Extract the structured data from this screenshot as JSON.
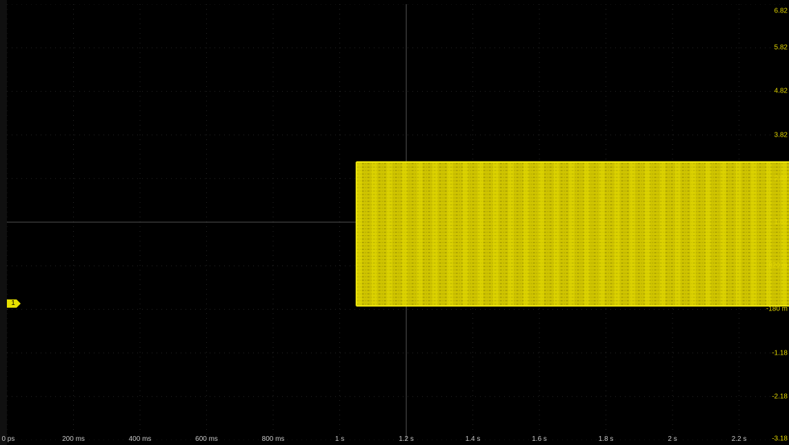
{
  "channel": {
    "number": "1",
    "color": "#e8e000"
  },
  "time_axis": {
    "labels": [
      "0 ps",
      "200 ms",
      "400 ms",
      "600 ms",
      "800 ms",
      "1 s",
      "1.2 s",
      "1.4 s",
      "1.6 s",
      "1.8 s",
      "2 s",
      "2.2 s"
    ],
    "start_s": 0,
    "end_s": 2.35
  },
  "voltage_axis": {
    "labels": [
      "6.82",
      "5.82",
      "4.82",
      "3.82",
      "2.82",
      "1.82",
      "820 m",
      "-180 m",
      "-1.18",
      "-2.18",
      "-3.18"
    ],
    "top": 6.82,
    "bottom": -3.18
  },
  "signal": {
    "start_s": 1.05,
    "high_v": 3.2,
    "low_v": -0.1
  }
}
